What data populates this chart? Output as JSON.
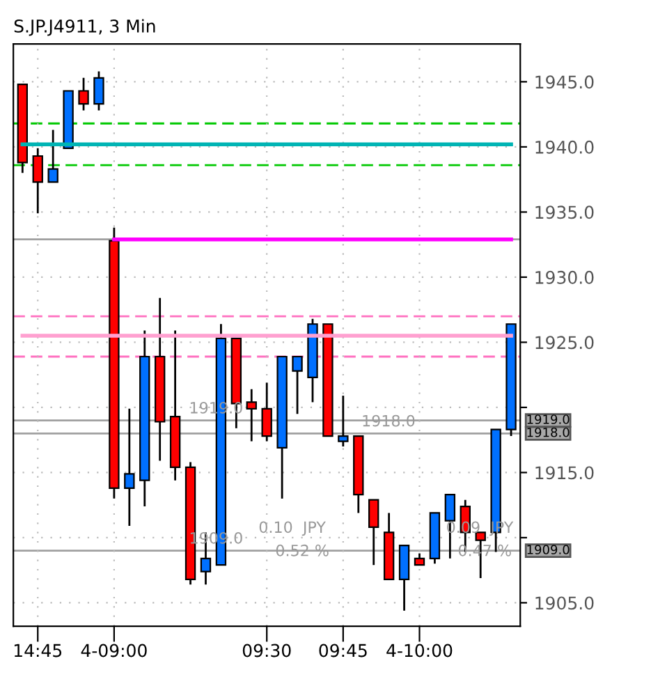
{
  "chart_data": {
    "type": "candlestick",
    "title": "S.JP.J4911, 3 Min",
    "categories": [
      null,
      "14:45",
      null,
      null,
      null,
      null,
      "4-09:00",
      null,
      null,
      null,
      null,
      null,
      null,
      null,
      null,
      null,
      "09:30",
      null,
      null,
      null,
      null,
      "09:45",
      null,
      null,
      null,
      null,
      "4-10:00",
      null,
      null,
      null,
      null,
      null,
      null
    ],
    "ohlc": [
      [
        1944.8,
        1944.8,
        1938.0,
        1938.8
      ],
      [
        1939.3,
        1939.9,
        1934.9,
        1937.3
      ],
      [
        1937.3,
        1941.3,
        1937.3,
        1938.3
      ],
      [
        1939.9,
        1944.3,
        1939.9,
        1944.3
      ],
      [
        1944.3,
        1945.3,
        1942.8,
        1943.3
      ],
      [
        1943.3,
        1945.8,
        1942.8,
        1945.3
      ],
      [
        1932.8,
        1933.8,
        1913.0,
        1913.8
      ],
      [
        1913.8,
        1919.9,
        1910.9,
        1914.9
      ],
      [
        1914.4,
        1925.9,
        1912.4,
        1923.9
      ],
      [
        1923.9,
        1928.4,
        1915.9,
        1918.9
      ],
      [
        1919.3,
        1925.9,
        1914.4,
        1915.4
      ],
      [
        1915.4,
        1915.8,
        1906.4,
        1906.8
      ],
      [
        1907.4,
        1910.4,
        1906.4,
        1908.4
      ],
      [
        1907.9,
        1926.4,
        1907.9,
        1925.3
      ],
      [
        1925.3,
        1925.3,
        1918.4,
        1920.3
      ],
      [
        1920.4,
        1921.4,
        1917.4,
        1919.9
      ],
      [
        1919.9,
        1921.9,
        1917.4,
        1917.8
      ],
      [
        1916.9,
        1923.9,
        1913.0,
        1923.9
      ],
      [
        1922.8,
        1923.9,
        1919.5,
        1923.9
      ],
      [
        1922.3,
        1926.8,
        1920.4,
        1926.4
      ],
      [
        1926.4,
        1926.4,
        1917.8,
        1917.8
      ],
      [
        1917.4,
        1920.9,
        1917.0,
        1917.8
      ],
      [
        1917.8,
        1917.8,
        1911.9,
        1913.3
      ],
      [
        1912.9,
        1912.9,
        1907.9,
        1910.8
      ],
      [
        1910.4,
        1911.9,
        1906.8,
        1906.8
      ],
      [
        1906.8,
        1909.4,
        1904.4,
        1909.4
      ],
      [
        1908.4,
        1908.8,
        1907.9,
        1907.9
      ],
      [
        1908.4,
        1911.9,
        1908.0,
        1911.9
      ],
      [
        1911.3,
        1913.3,
        1908.4,
        1913.3
      ],
      [
        1912.4,
        1912.9,
        1908.9,
        1910.4
      ],
      [
        1910.4,
        1910.4,
        1906.9,
        1909.8
      ],
      [
        1910.4,
        1918.3,
        1908.9,
        1918.3
      ],
      [
        1918.3,
        1926.4,
        1917.8,
        1926.4
      ]
    ],
    "colors": [
      "#ff0000",
      "#ff0000",
      "#0070ff",
      "#0070ff",
      "#ff0000",
      "#0070ff",
      "#ff0000",
      "#0070ff",
      "#0070ff",
      "#ff0000",
      "#ff0000",
      "#ff0000",
      "#0070ff",
      "#0070ff",
      "#ff0000",
      "#ff0000",
      "#ff0000",
      "#0070ff",
      "#0070ff",
      "#0070ff",
      "#ff0000",
      "#0070ff",
      "#ff0000",
      "#ff0000",
      "#ff0000",
      "#0070ff",
      "#ff0000",
      "#0070ff",
      "#0070ff",
      "#ff0000",
      "#ff0000",
      "#0070ff",
      "#0070ff"
    ],
    "series": [
      {
        "type": "line",
        "color": "#ff00ff",
        "values": [
          null,
          null,
          null,
          null,
          null,
          null,
          1932.9,
          1932.9,
          1932.9,
          1932.9,
          1932.9,
          1932.9,
          1932.9,
          1932.9,
          1932.9,
          1932.9,
          1932.9,
          1932.9,
          1932.9,
          1932.9,
          1932.9,
          1932.9,
          1932.9,
          1932.9,
          1932.9,
          1932.9,
          1932.9,
          1932.9,
          1932.9,
          1932.9,
          1932.9,
          1932.9,
          1932.9
        ]
      },
      {
        "type": "line",
        "color": "#00b4b4",
        "values": [
          1940.2,
          1940.2,
          1940.2,
          1940.2,
          1940.2,
          1940.2,
          1940.2,
          1940.2,
          1940.2,
          1940.2,
          1940.2,
          1940.2,
          1940.2,
          1940.2,
          1940.2,
          1940.2,
          1940.2,
          1940.2,
          1940.2,
          1940.2,
          1940.2,
          1940.2,
          1940.2,
          1940.2,
          1940.2,
          1940.2,
          1940.2,
          1940.2,
          1940.2,
          1940.2,
          1940.2,
          1940.2,
          1940.2
        ]
      },
      {
        "type": "line",
        "color": "#ffa0d0",
        "values": [
          1925.5,
          1925.5,
          1925.5,
          1925.5,
          1925.5,
          1925.5,
          1925.5,
          1925.5,
          1925.5,
          1925.5,
          1925.5,
          1925.5,
          1925.5,
          1925.5,
          1925.5,
          1925.5,
          1925.5,
          1925.5,
          1925.5,
          1925.5,
          1925.5,
          1925.5,
          1925.5,
          1925.5,
          1925.5,
          1925.5,
          1925.5,
          1925.5,
          1925.5,
          1925.5,
          1925.5,
          1925.5,
          1925.5
        ]
      }
    ],
    "ref_lines": [
      {
        "axis": "y",
        "value": 1941.8,
        "color": "#00c800",
        "line_style": "dashed"
      },
      {
        "axis": "y",
        "value": 1938.6,
        "color": "#00c800",
        "line_style": "dashed"
      },
      {
        "axis": "y",
        "value": 1932.9,
        "color": "#a0a0a0",
        "line_style": "solid"
      },
      {
        "axis": "y",
        "value": 1927.0,
        "color": "#ff70c0",
        "line_style": "dashed"
      },
      {
        "axis": "y",
        "value": 1923.9,
        "color": "#ff70c0",
        "line_style": "dashed"
      },
      {
        "axis": "y",
        "value": 1919.0,
        "color": "#a0a0a0",
        "line_style": "solid",
        "label": "1919.0"
      },
      {
        "axis": "y",
        "value": 1918.0,
        "color": "#a0a0a0",
        "line_style": "solid",
        "label": "1918.0"
      },
      {
        "axis": "y",
        "value": 1909.0,
        "color": "#a0a0a0",
        "line_style": "solid",
        "label": "1909.0"
      }
    ],
    "annotations": [
      {
        "text": "1919.0",
        "y": 1919.0
      },
      {
        "text": "1909.0",
        "y": 1909.0
      },
      {
        "text": "1918.0",
        "y": 1918.0
      },
      "0.10  JPY",
      "0.52 %",
      "0.09  JPY",
      "0.47 %"
    ],
    "ylim": [
      1903.2,
      1947.9
    ],
    "yticks": [
      {
        "value": 1905,
        "label": "1905.0"
      },
      {
        "value": 1910,
        "label": null
      },
      {
        "value": 1915,
        "label": "1915.0"
      },
      {
        "value": 1920,
        "label": null
      },
      {
        "value": 1925,
        "label": "1925.0"
      },
      {
        "value": 1930,
        "label": "1930.0"
      },
      {
        "value": 1935,
        "label": "1935.0"
      },
      {
        "value": 1940,
        "label": "1940.0"
      },
      {
        "value": 1945,
        "label": "1945.0"
      }
    ],
    "grid": true
  }
}
